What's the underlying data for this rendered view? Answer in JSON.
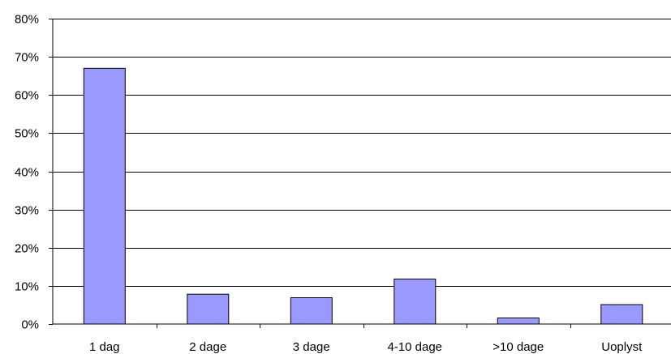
{
  "chart_data": {
    "type": "bar",
    "categories": [
      "1 dag",
      "2 dage",
      "3 dage",
      "4-10 dage",
      ">10 dage",
      "Uoplyst"
    ],
    "values": [
      67,
      7.8,
      6.9,
      11.8,
      1.6,
      5.1
    ],
    "y_tick_labels": [
      "0%",
      "10%",
      "20%",
      "30%",
      "40%",
      "50%",
      "60%",
      "70%",
      "80%"
    ],
    "ylim": [
      0,
      80
    ],
    "y_unit": "%",
    "grid": true,
    "legend": false,
    "title": "",
    "xlabel": "",
    "ylabel": "",
    "bar_color": "#9999ff",
    "bar_edge_color": "#000000"
  }
}
